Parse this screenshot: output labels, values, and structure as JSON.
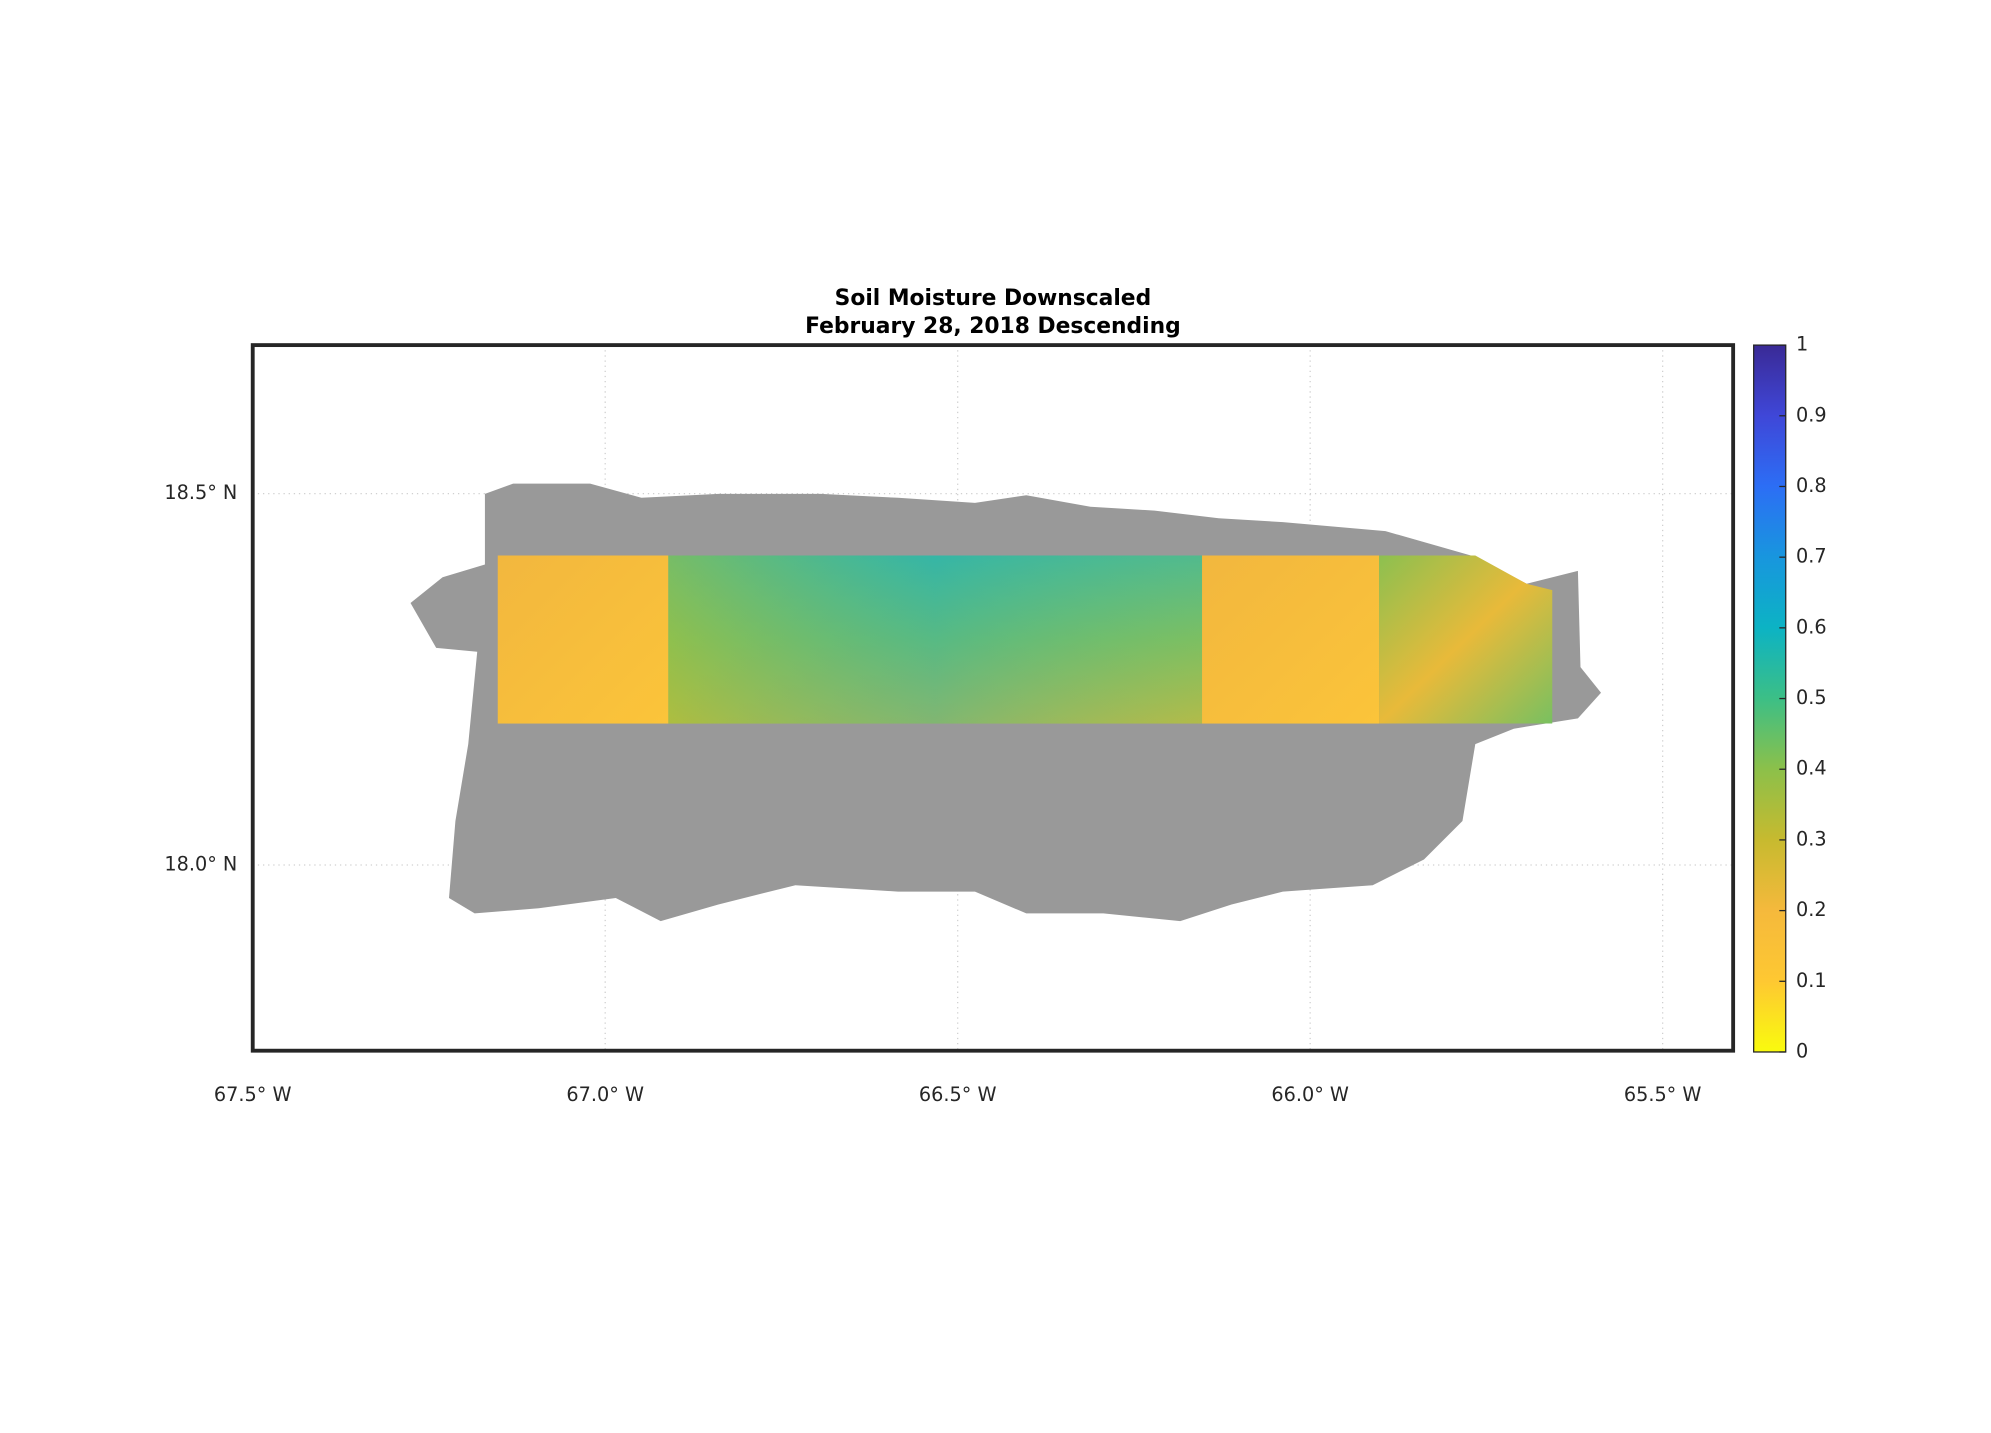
{
  "chart_data": {
    "type": "map",
    "title": "Soil Moisture Downscaled",
    "subtitle": "February 28, 2018 Descending",
    "xlim": [
      -67.5,
      -65.4
    ],
    "ylim": [
      17.75,
      18.7
    ],
    "xticks": [
      {
        "value": -67.5,
        "label": "67.5° W"
      },
      {
        "value": -67.0,
        "label": "67.0° W"
      },
      {
        "value": -66.5,
        "label": "66.5° W"
      },
      {
        "value": -66.0,
        "label": "66.0° W"
      },
      {
        "value": -65.5,
        "label": "65.5° W"
      }
    ],
    "yticks": [
      {
        "value": 18.0,
        "label": "18.0° N"
      },
      {
        "value": 18.5,
        "label": "18.5° N"
      }
    ],
    "grid": true,
    "colorbar": {
      "clim": [
        0,
        1
      ],
      "ticks": [
        0,
        0.1,
        0.2,
        0.3,
        0.4,
        0.5,
        0.6,
        0.7,
        0.8,
        0.9,
        1
      ],
      "colormap": [
        "#f9fb0e",
        "#fec832",
        "#f5b93c",
        "#c7ba2f",
        "#8cc04a",
        "#3cbf86",
        "#0cb3c4",
        "#1896de",
        "#2c6ef5",
        "#3f47d8",
        "#3a2a96"
      ]
    }
  }
}
